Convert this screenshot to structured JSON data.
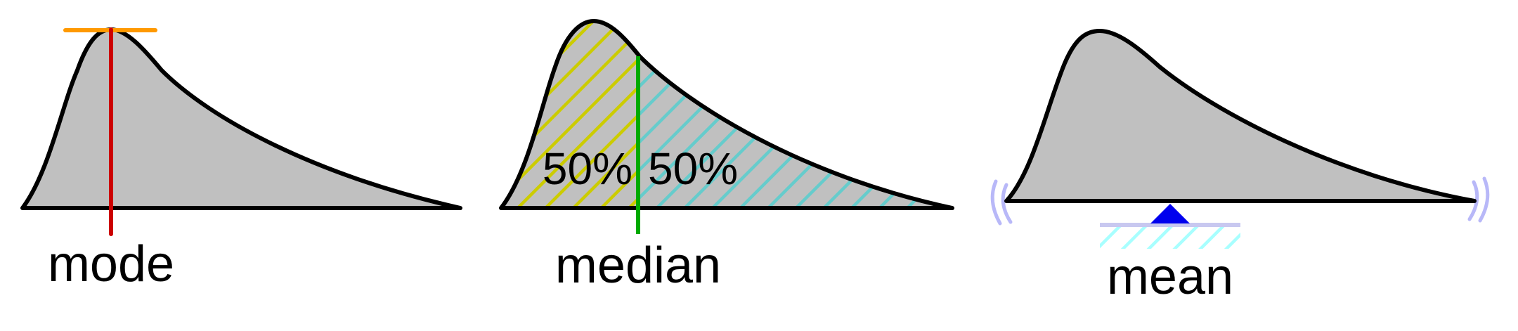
{
  "panels": [
    {
      "id": "mode",
      "label": "mode"
    },
    {
      "id": "median",
      "label": "median",
      "left_percent": "50%",
      "right_percent": "50%"
    },
    {
      "id": "mean",
      "label": "mean"
    }
  ],
  "colors": {
    "curve_fill": "#c0c0c0",
    "outline": "#000000",
    "mode_marker": "#cc0000",
    "mode_peak_bar": "#ff9900",
    "median_marker": "#00aa00",
    "median_left_hatch": "#cccc00",
    "median_right_hatch": "#66cccc",
    "fulcrum": "#0000ee",
    "support_hatch": "#a8ffff",
    "support_base": "#c8c8f0",
    "balance_arcs": "#b8b8f8"
  }
}
